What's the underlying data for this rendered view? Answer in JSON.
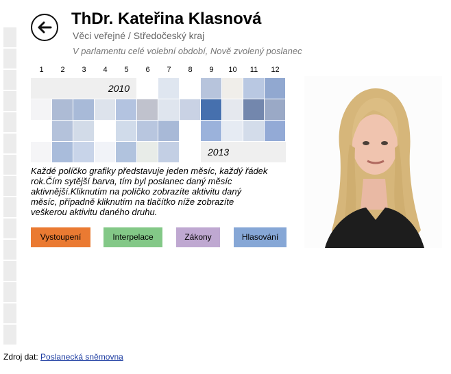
{
  "header": {
    "name": "ThDr. Kateřina Klasnová",
    "party": "Věci veřejné / Středočeský kraj",
    "status": "V parlamentu celé volební období, Nově zvolený poslanec"
  },
  "months": [
    "1",
    "2",
    "3",
    "4",
    "5",
    "6",
    "7",
    "8",
    "9",
    "10",
    "11",
    "12"
  ],
  "years": {
    "start": "2010",
    "end": "2013"
  },
  "calendar": {
    "row_2010": [
      "#ffffff",
      "#dfe6f0",
      "#ffffff",
      "#b7c4dc",
      "#f0eeea",
      "#b9c8e2",
      "#91a8d0"
    ],
    "row_2011": [
      "#f4f4f6",
      "#adbbd5",
      "#a8bad8",
      "#dde3ec",
      "#b3c3e0",
      "#c0c2cd",
      "#dfe5ee",
      "#c9d2e4",
      "#4670ae",
      "#e5e8ee",
      "#7387ad",
      "#9aa9c6"
    ],
    "row_2012": [
      "#ffffff",
      "#b4c2db",
      "#d2dbe8",
      "#ffffff",
      "#d0dbea",
      "#b8c6df",
      "#a8b9d7",
      "#ffffff",
      "#9bb2db",
      "#e6ebf3",
      "#d3dcea",
      "#93aad6"
    ],
    "row_2013": [
      "#f5f5f7",
      "#a9bcdb",
      "#c8d4e9",
      "#f1f3f8",
      "#b1c3de",
      "#e8ece8",
      "#c3cfe4",
      "#ffffff"
    ]
  },
  "description": [
    "Každé políčko grafiky představuje jeden měsíc, každý řádek",
    "rok.Čím sytější barva, tím byl poslanec daný měsíc",
    "aktivnější.Kliknutím na políčko zobrazíte aktivitu daný",
    "měsíc, případně kliknutím na tlačítko níže zobrazíte",
    "veškerou aktivitu daného druhu."
  ],
  "buttons": {
    "vystoupeni": "Vystoupení",
    "interpelace": "Interpelace",
    "zakony": "Zákony",
    "hlasovani": "Hlasování"
  },
  "colors": {
    "vystoupeni": "#ea7a32",
    "interpelace": "#83c887",
    "zakony": "#bfa8d1",
    "hlasovani": "#86a7d6"
  },
  "source": {
    "label": "Zdroj dat:",
    "link": "Poslanecká sněmovna"
  }
}
